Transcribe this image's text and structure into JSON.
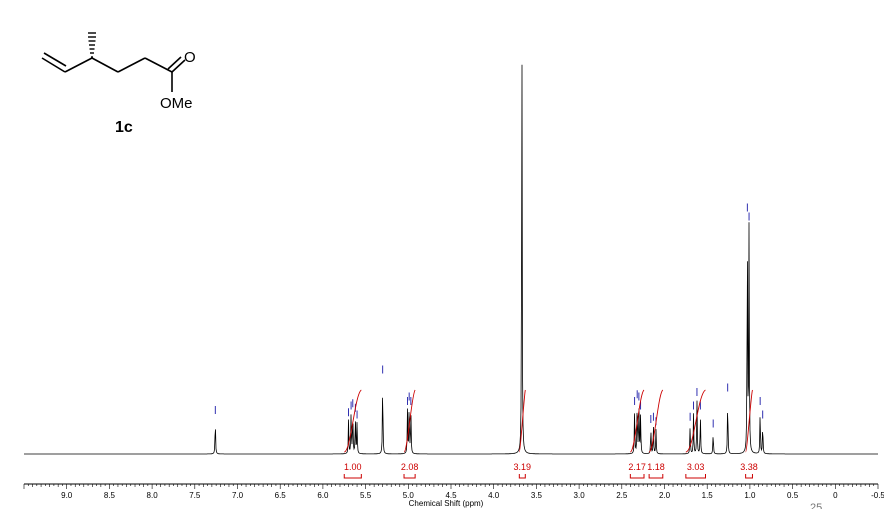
{
  "compound": {
    "label": "1c",
    "ester_group": "OMe",
    "carbonyl_atom": "O"
  },
  "page_number": "25",
  "chart_data": {
    "type": "line",
    "xlabel": "Chemical Shift (ppm)",
    "ylabel": "",
    "xlim": [
      9.5,
      -0.5
    ],
    "x_reversed": true,
    "grid": false,
    "ticks": [
      9.0,
      8.5,
      8.0,
      7.5,
      7.0,
      6.5,
      6.0,
      5.5,
      5.0,
      4.5,
      4.0,
      3.5,
      3.0,
      2.5,
      2.0,
      1.5,
      1.0,
      0.5,
      0,
      -0.5
    ],
    "tick_labels": [
      "9.0",
      "8.5",
      "8.0",
      "7.5",
      "7.0",
      "6.5",
      "6.0",
      "5.5",
      "5.0",
      "4.5",
      "4.0",
      "3.5",
      "3.0",
      "2.5",
      "2.0",
      "1.5",
      "1.0",
      "0.5",
      "0",
      "-0.5"
    ],
    "peaks": [
      {
        "shift": 7.26,
        "height": 0.08
      },
      {
        "shift": 5.7,
        "height": 0.075
      },
      {
        "shift": 5.67,
        "height": 0.09
      },
      {
        "shift": 5.65,
        "height": 0.095
      },
      {
        "shift": 5.62,
        "height": 0.085
      },
      {
        "shift": 5.6,
        "height": 0.07
      },
      {
        "shift": 5.3,
        "height": 0.17
      },
      {
        "shift": 5.01,
        "height": 0.1
      },
      {
        "shift": 4.99,
        "height": 0.11
      },
      {
        "shift": 4.97,
        "height": 0.1
      },
      {
        "shift": 3.67,
        "height": 1.0
      },
      {
        "shift": 2.35,
        "height": 0.1
      },
      {
        "shift": 2.32,
        "height": 0.115
      },
      {
        "shift": 2.3,
        "height": 0.11
      },
      {
        "shift": 2.28,
        "height": 0.09
      },
      {
        "shift": 2.16,
        "height": 0.06
      },
      {
        "shift": 2.13,
        "height": 0.065
      },
      {
        "shift": 2.1,
        "height": 0.055
      },
      {
        "shift": 1.7,
        "height": 0.065
      },
      {
        "shift": 1.66,
        "height": 0.09
      },
      {
        "shift": 1.62,
        "height": 0.12
      },
      {
        "shift": 1.58,
        "height": 0.09
      },
      {
        "shift": 1.43,
        "height": 0.05
      },
      {
        "shift": 1.26,
        "height": 0.13
      },
      {
        "shift": 1.03,
        "height": 0.53
      },
      {
        "shift": 1.01,
        "height": 0.51
      },
      {
        "shift": 0.88,
        "height": 0.1
      },
      {
        "shift": 0.85,
        "height": 0.07
      }
    ],
    "integrals": [
      {
        "from": 5.75,
        "to": 5.55,
        "value": "1.00"
      },
      {
        "from": 5.05,
        "to": 4.92,
        "value": "2.08"
      },
      {
        "from": 3.7,
        "to": 3.63,
        "value": "3.19"
      },
      {
        "from": 2.4,
        "to": 2.24,
        "value": "2.17"
      },
      {
        "from": 2.18,
        "to": 2.02,
        "value": "1.18"
      },
      {
        "from": 1.75,
        "to": 1.52,
        "value": "3.03"
      },
      {
        "from": 1.05,
        "to": 0.97,
        "value": "3.38"
      }
    ],
    "colors": {
      "spectrum": "#000000",
      "integral": "#cc0000",
      "peak_marker": "#1a1aa8"
    }
  }
}
